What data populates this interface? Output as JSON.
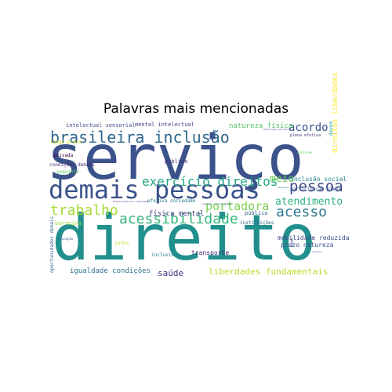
{
  "chart_data": {
    "type": "wordcloud",
    "title": "Palavras mais mencionadas",
    "words": [
      {
        "text": "serviço",
        "weight": 100,
        "color": "#3b528b"
      },
      {
        "text": "direito",
        "weight": 98,
        "color": "#21908d"
      },
      {
        "text": "demais pessoas",
        "weight": 55,
        "color": "#3b528b"
      },
      {
        "text": "brasileira inclusão",
        "weight": 42,
        "color": "#31688e"
      },
      {
        "text": "exercício direitos",
        "weight": 30,
        "color": "#21a585"
      },
      {
        "text": "pessoa",
        "weight": 32,
        "color": "#3e4a89"
      },
      {
        "text": "acessibilidade",
        "weight": 30,
        "color": "#35b779"
      },
      {
        "text": "trabalho",
        "weight": 30,
        "color": "#a5db36"
      },
      {
        "text": "acesso",
        "weight": 30,
        "color": "#2a788e"
      },
      {
        "text": "acordo",
        "weight": 22,
        "color": "#3b528b"
      },
      {
        "text": "portadora",
        "weight": 22,
        "color": "#7ad151"
      },
      {
        "text": "atendimento",
        "weight": 20,
        "color": "#2fb47c"
      },
      {
        "text": "meio",
        "weight": 20,
        "color": "#6ece58"
      },
      {
        "text": "liberdades fundamentais",
        "weight": 18,
        "color": "#b5de2b"
      },
      {
        "text": "saúde",
        "weight": 18,
        "color": "#472d7b"
      },
      {
        "text": "igualdade condições",
        "weight": 14,
        "color": "#2c728e"
      },
      {
        "text": "física mental",
        "weight": 14,
        "color": "#443983"
      },
      {
        "text": "natureza física",
        "weight": 13,
        "color": "#52c569"
      },
      {
        "text": "mobilidade reduzida",
        "weight": 12,
        "color": "#3e4a89"
      },
      {
        "text": "direitos liberdades",
        "weight": 13,
        "color": "#fde725"
      },
      {
        "text": "inclusão social",
        "weight": 11,
        "color": "#26828e"
      },
      {
        "text": "prazo natureza",
        "weight": 11,
        "color": "#3b528b"
      },
      {
        "text": "transporte",
        "weight": 11,
        "color": "#482878"
      },
      {
        "text": "intelectual sensorial",
        "weight": 10,
        "color": "#3e4a89"
      },
      {
        "text": "mental intelectual",
        "weight": 10,
        "color": "#433e85"
      },
      {
        "text": "público",
        "weight": 10,
        "color": "#46327e"
      },
      {
        "text": "barreira",
        "weight": 10,
        "color": "#9fda3a"
      },
      {
        "text": "pública",
        "weight": 10,
        "color": "#31688e"
      },
      {
        "text": "efetiva sociedade",
        "weight": 9,
        "color": "#2a788e"
      },
      {
        "text": "participação plena",
        "weight": 9,
        "color": "#365c8d"
      },
      {
        "text": "oportunidades demais",
        "weight": 9,
        "color": "#33638d"
      },
      {
        "text": "condições demais",
        "weight": 9,
        "color": "#481f70"
      },
      {
        "text": "longo prazo",
        "weight": 9,
        "color": "#d2e21b"
      },
      {
        "text": "seguinte",
        "weight": 9,
        "color": "#5ec962"
      },
      {
        "text": "privada",
        "weight": 9,
        "color": "#440154"
      },
      {
        "text": "inclusive",
        "weight": 8,
        "color": "#2a788e"
      },
      {
        "text": "julho",
        "weight": 8,
        "color": "#b5de2b"
      },
      {
        "text": "instituições",
        "weight": 8,
        "color": "#31688e"
      },
      {
        "text": "devem",
        "weight": 8,
        "color": "#1f9e89"
      },
      {
        "text": "todo",
        "weight": 7,
        "color": "#3e4a89"
      },
      {
        "text": "plena efetiva",
        "weight": 7,
        "color": "#46327e"
      },
      {
        "text": "conforme",
        "weight": 6,
        "color": "#5ec962"
      },
      {
        "text": "educação",
        "weight": 6,
        "color": "#3b528b"
      },
      {
        "text": "família",
        "weight": 5,
        "color": "#3b528b"
      },
      {
        "text": "dever",
        "weight": 5,
        "color": "#3b528b"
      },
      {
        "text": "impresso",
        "weight": 5,
        "color": "#2c728e"
      },
      {
        "text": "tecnologia assistiva",
        "weight": 5,
        "color": "#443983"
      },
      {
        "text": "biopsicossocial realizada",
        "weight": 5,
        "color": "#482878"
      },
      {
        "text": "obstruir participação",
        "weight": 5,
        "color": "#3b528b"
      }
    ]
  }
}
